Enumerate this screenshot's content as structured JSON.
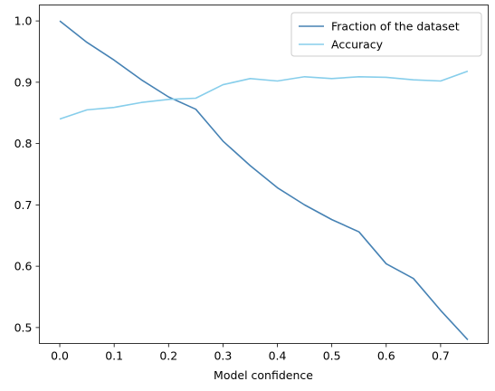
{
  "chart_data": {
    "type": "line",
    "title": "",
    "xlabel": "Model confidence",
    "ylabel": "",
    "xlim": [
      -0.0375,
      0.7875
    ],
    "ylim": [
      0.474,
      1.026
    ],
    "xticks": [
      0.0,
      0.1,
      0.2,
      0.3,
      0.4,
      0.5,
      0.6,
      0.7
    ],
    "xtick_labels": [
      "0.0",
      "0.1",
      "0.2",
      "0.3",
      "0.4",
      "0.5",
      "0.6",
      "0.7"
    ],
    "yticks": [
      0.5,
      0.6,
      0.7,
      0.8,
      0.9,
      1.0
    ],
    "ytick_labels": [
      "0.5",
      "0.6",
      "0.7",
      "0.8",
      "0.9",
      "1.0"
    ],
    "grid": false,
    "legend_position": "top-right",
    "x": [
      0.0,
      0.05,
      0.1,
      0.15,
      0.2,
      0.25,
      0.3,
      0.35,
      0.4,
      0.45,
      0.5,
      0.55,
      0.6,
      0.65,
      0.7,
      0.75
    ],
    "series": [
      {
        "name": "Fraction of the dataset",
        "color": "#4682b4",
        "values": [
          1.0,
          0.965,
          0.936,
          0.904,
          0.876,
          0.856,
          0.804,
          0.764,
          0.728,
          0.7,
          0.676,
          0.656,
          0.604,
          0.58,
          0.528,
          0.48
        ]
      },
      {
        "name": "Accuracy",
        "color": "#87ceeb",
        "values": [
          0.84,
          0.855,
          0.859,
          0.867,
          0.872,
          0.874,
          0.896,
          0.906,
          0.902,
          0.909,
          0.906,
          0.909,
          0.908,
          0.904,
          0.902,
          0.918
        ]
      }
    ]
  }
}
